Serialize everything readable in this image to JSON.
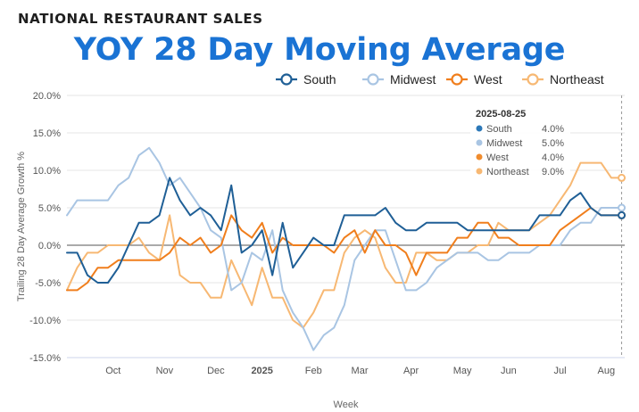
{
  "header": {
    "kicker": "NATIONAL RESTAURANT SALES",
    "title": "YOY 28 Day Moving Average"
  },
  "chart_data": {
    "type": "line",
    "title": "YOY 28 Day Moving Average",
    "xlabel": "Week",
    "ylabel": "Trailing 28 Day Average Growth %",
    "ylim": [
      -15,
      20
    ],
    "y_ticks": [
      "20.0%",
      "15.0%",
      "10.0%",
      "5.0%",
      "0.0%",
      "-5.0%",
      "-10.0%",
      "-15.0%"
    ],
    "y_tick_values": [
      20,
      15,
      10,
      5,
      0,
      -5,
      -10,
      -15
    ],
    "x_ticks": [
      {
        "label": "Oct",
        "week": 4.5,
        "bold": false
      },
      {
        "label": "Nov",
        "week": 9.5,
        "bold": false
      },
      {
        "label": "Dec",
        "week": 14.5,
        "bold": false
      },
      {
        "label": "2025",
        "week": 19,
        "bold": true
      },
      {
        "label": "Feb",
        "week": 24,
        "bold": false
      },
      {
        "label": "Mar",
        "week": 28.5,
        "bold": false
      },
      {
        "label": "Apr",
        "week": 33.5,
        "bold": false
      },
      {
        "label": "May",
        "week": 38.5,
        "bold": false
      },
      {
        "label": "Jun",
        "week": 43,
        "bold": false
      },
      {
        "label": "Jul",
        "week": 48,
        "bold": false
      },
      {
        "label": "Aug",
        "week": 52.5,
        "bold": false
      }
    ],
    "x_domain": [
      0,
      54.3
    ],
    "legend": {
      "position": "top-right"
    },
    "highlight_week": 54,
    "tooltip": {
      "date": "2025-08-25",
      "rows": [
        {
          "name": "South",
          "value": "4.0%"
        },
        {
          "name": "Midwest",
          "value": "5.0%"
        },
        {
          "name": "West",
          "value": "4.0%"
        },
        {
          "name": "Northeast",
          "value": "9.0%"
        }
      ]
    },
    "series": [
      {
        "name": "South",
        "color": "#1f5f96",
        "dot_color": "#2c78b8",
        "values": [
          -1,
          -1,
          -4,
          -5,
          -5,
          -3,
          0,
          3,
          3,
          4,
          9,
          6,
          4,
          5,
          4,
          2,
          8,
          -1,
          0,
          2,
          -4,
          3,
          -3,
          -1,
          1,
          0,
          0,
          4,
          4,
          4,
          4,
          5,
          3,
          2,
          2,
          3,
          3,
          3,
          3,
          2,
          2,
          2,
          2,
          2,
          2,
          2,
          4,
          4,
          4,
          6,
          7,
          5,
          4,
          4,
          4
        ]
      },
      {
        "name": "Midwest",
        "color": "#a9c5e3",
        "dot_color": "#a9c5e3",
        "values": [
          4,
          6,
          6,
          6,
          6,
          8,
          9,
          12,
          13,
          11,
          8,
          9,
          7,
          5,
          2,
          1,
          -6,
          -5,
          -1,
          -2,
          2,
          -6,
          -9,
          -11,
          -14,
          -12,
          -11,
          -8,
          -2,
          0,
          2,
          2,
          -2,
          -6,
          -6,
          -5,
          -3,
          -2,
          -1,
          -1,
          -1,
          -2,
          -2,
          -1,
          -1,
          -1,
          0,
          0,
          0,
          2,
          3,
          3,
          5,
          5,
          5
        ]
      },
      {
        "name": "West",
        "color": "#f07e1c",
        "dot_color": "#f08c2e",
        "values": [
          -6,
          -6,
          -5,
          -3,
          -3,
          -2,
          -2,
          -2,
          -2,
          -2,
          -1,
          1,
          0,
          1,
          -1,
          0,
          4,
          2,
          1,
          3,
          -1,
          1,
          0,
          0,
          0,
          0,
          -1,
          1,
          2,
          -1,
          2,
          0,
          0,
          -1,
          -4,
          -1,
          -1,
          -1,
          1,
          1,
          3,
          3,
          1,
          1,
          0,
          0,
          0,
          0,
          2,
          3,
          4,
          5,
          4,
          4,
          4
        ]
      },
      {
        "name": "Northeast",
        "color": "#f7b873",
        "dot_color": "#f7b873",
        "values": [
          -6,
          -3,
          -1,
          -1,
          0,
          0,
          0,
          1,
          -1,
          -2,
          4,
          -4,
          -5,
          -5,
          -7,
          -7,
          -2,
          -5,
          -8,
          -3,
          -7,
          -7,
          -10,
          -11,
          -9,
          -6,
          -6,
          -1,
          1,
          2,
          1,
          -3,
          -5,
          -5,
          -1,
          -1,
          -2,
          -2,
          -1,
          -1,
          0,
          0,
          3,
          2,
          2,
          2,
          3,
          4,
          6,
          8,
          11,
          11,
          11,
          9,
          9
        ]
      }
    ]
  }
}
